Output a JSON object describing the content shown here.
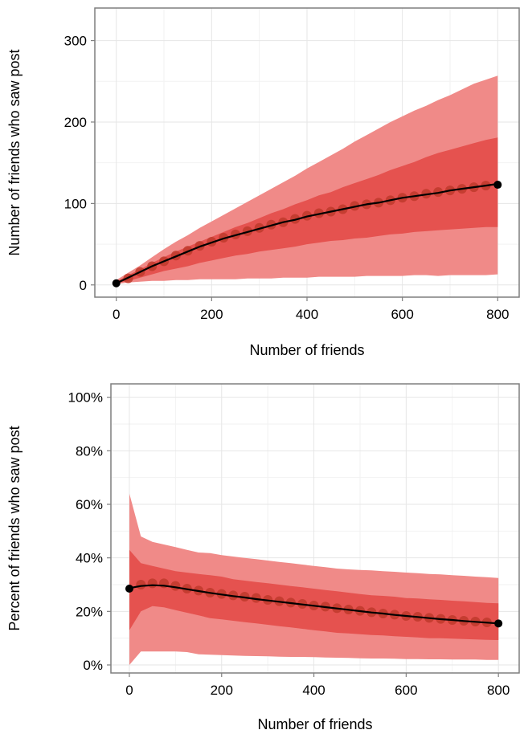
{
  "colors": {
    "outer_band": "#f08a88",
    "inner_band": "#e5524f",
    "mean_points": "#c0392b",
    "smooth_line": "#000000",
    "grid": "#e6e6e6",
    "border": "#7f7f7f"
  },
  "chart_data": [
    {
      "type": "area",
      "xlabel": "Number of friends",
      "ylabel": "Number of friends who saw post",
      "xlim": [
        -45,
        845
      ],
      "ylim": [
        -15,
        340
      ],
      "x_ticks": [
        0,
        200,
        400,
        600,
        800
      ],
      "x_tick_labels": [
        "0",
        "200",
        "400",
        "600",
        "800"
      ],
      "y_ticks": [
        0,
        100,
        200,
        300
      ],
      "y_tick_labels": [
        "0",
        "100",
        "200",
        "300"
      ],
      "grid": true,
      "x": [
        0,
        25,
        50,
        75,
        100,
        125,
        150,
        175,
        200,
        225,
        250,
        275,
        300,
        325,
        350,
        375,
        400,
        425,
        450,
        475,
        500,
        525,
        550,
        575,
        600,
        625,
        650,
        675,
        700,
        725,
        750,
        775,
        800
      ],
      "series": [
        {
          "role": "outer_band",
          "lower": [
            1,
            3,
            4,
            5,
            5,
            6,
            6,
            7,
            7,
            7,
            7,
            8,
            8,
            8,
            9,
            9,
            9,
            10,
            10,
            10,
            10,
            11,
            11,
            11,
            11,
            12,
            12,
            11,
            12,
            12,
            12,
            12,
            13
          ],
          "upper": [
            6,
            15,
            24,
            34,
            44,
            53,
            61,
            70,
            78,
            86,
            94,
            102,
            110,
            118,
            126,
            134,
            143,
            151,
            159,
            167,
            176,
            184,
            192,
            200,
            207,
            214,
            220,
            227,
            233,
            240,
            247,
            252,
            257
          ]
        },
        {
          "role": "inner_band",
          "lower": [
            2,
            5,
            9,
            13,
            17,
            20,
            23,
            27,
            30,
            33,
            36,
            38,
            41,
            43,
            45,
            47,
            50,
            52,
            54,
            55,
            57,
            58,
            60,
            62,
            63,
            65,
            66,
            67,
            68,
            69,
            70,
            71,
            71
          ],
          "upper": [
            4,
            12,
            19,
            27,
            34,
            41,
            47,
            53,
            59,
            65,
            71,
            76,
            82,
            88,
            93,
            99,
            104,
            110,
            114,
            120,
            125,
            130,
            135,
            141,
            146,
            151,
            157,
            162,
            166,
            170,
            174,
            178,
            181
          ]
        },
        {
          "role": "mean_points",
          "values": [
            2,
            8,
            16,
            23,
            29,
            36,
            42,
            48,
            53,
            58,
            62,
            66,
            70,
            74,
            77,
            81,
            85,
            88,
            90,
            93,
            97,
            99,
            101,
            104,
            107,
            109,
            112,
            114,
            116,
            118,
            120,
            122,
            123
          ]
        },
        {
          "role": "smooth_line",
          "values": [
            2,
            9,
            16,
            23,
            29,
            35,
            41,
            47,
            52,
            57,
            61,
            65,
            69,
            73,
            77,
            80,
            84,
            87,
            90,
            93,
            96,
            99,
            101,
            104,
            107,
            109,
            111,
            113,
            116,
            118,
            120,
            122,
            124
          ]
        }
      ]
    },
    {
      "type": "area",
      "xlabel": "Number of friends",
      "ylabel": "Percent of friends who saw post",
      "xlim": [
        -40,
        845
      ],
      "ylim": [
        -0.03,
        1.05
      ],
      "x_ticks": [
        0,
        200,
        400,
        600,
        800
      ],
      "x_tick_labels": [
        "0",
        "200",
        "400",
        "600",
        "800"
      ],
      "y_ticks": [
        0,
        0.2,
        0.4,
        0.6,
        0.8,
        1.0
      ],
      "y_tick_labels": [
        "0%",
        "20%",
        "40%",
        "60%",
        "80%",
        "100%"
      ],
      "grid": true,
      "x": [
        0,
        25,
        50,
        75,
        100,
        125,
        150,
        175,
        200,
        225,
        250,
        275,
        300,
        325,
        350,
        375,
        400,
        425,
        450,
        475,
        500,
        525,
        550,
        575,
        600,
        625,
        650,
        675,
        700,
        725,
        750,
        775,
        800
      ],
      "series": [
        {
          "role": "outer_band",
          "lower": [
            0.0,
            0.05,
            0.05,
            0.05,
            0.05,
            0.048,
            0.04,
            0.038,
            0.037,
            0.035,
            0.034,
            0.033,
            0.032,
            0.031,
            0.03,
            0.03,
            0.029,
            0.028,
            0.027,
            0.026,
            0.025,
            0.024,
            0.024,
            0.023,
            0.022,
            0.022,
            0.021,
            0.021,
            0.02,
            0.02,
            0.02,
            0.019,
            0.019
          ],
          "upper": [
            0.64,
            0.48,
            0.46,
            0.45,
            0.44,
            0.43,
            0.42,
            0.418,
            0.41,
            0.405,
            0.4,
            0.395,
            0.39,
            0.385,
            0.38,
            0.375,
            0.37,
            0.365,
            0.36,
            0.357,
            0.355,
            0.353,
            0.35,
            0.348,
            0.345,
            0.343,
            0.34,
            0.338,
            0.335,
            0.333,
            0.33,
            0.328,
            0.325
          ]
        },
        {
          "role": "inner_band",
          "lower": [
            0.13,
            0.2,
            0.22,
            0.215,
            0.205,
            0.195,
            0.185,
            0.175,
            0.17,
            0.165,
            0.16,
            0.155,
            0.15,
            0.145,
            0.14,
            0.135,
            0.13,
            0.125,
            0.12,
            0.118,
            0.115,
            0.112,
            0.11,
            0.107,
            0.105,
            0.103,
            0.1,
            0.1,
            0.098,
            0.097,
            0.095,
            0.094,
            0.093
          ],
          "upper": [
            0.43,
            0.38,
            0.37,
            0.36,
            0.35,
            0.345,
            0.34,
            0.335,
            0.33,
            0.32,
            0.315,
            0.31,
            0.305,
            0.3,
            0.295,
            0.29,
            0.285,
            0.28,
            0.275,
            0.27,
            0.265,
            0.26,
            0.258,
            0.255,
            0.25,
            0.248,
            0.245,
            0.243,
            0.24,
            0.238,
            0.235,
            0.232,
            0.23
          ]
        },
        {
          "role": "mean_points",
          "values": [
            0.285,
            0.3,
            0.305,
            0.305,
            0.295,
            0.285,
            0.278,
            0.27,
            0.265,
            0.26,
            0.255,
            0.25,
            0.243,
            0.238,
            0.233,
            0.228,
            0.222,
            0.218,
            0.212,
            0.207,
            0.202,
            0.197,
            0.192,
            0.188,
            0.183,
            0.18,
            0.176,
            0.172,
            0.168,
            0.165,
            0.162,
            0.159,
            0.155
          ]
        },
        {
          "role": "smooth_line",
          "values": [
            0.287,
            0.295,
            0.298,
            0.296,
            0.29,
            0.283,
            0.276,
            0.269,
            0.263,
            0.257,
            0.252,
            0.246,
            0.241,
            0.236,
            0.231,
            0.226,
            0.221,
            0.216,
            0.211,
            0.206,
            0.201,
            0.196,
            0.192,
            0.187,
            0.183,
            0.179,
            0.175,
            0.171,
            0.168,
            0.164,
            0.161,
            0.158,
            0.155
          ]
        }
      ]
    }
  ]
}
